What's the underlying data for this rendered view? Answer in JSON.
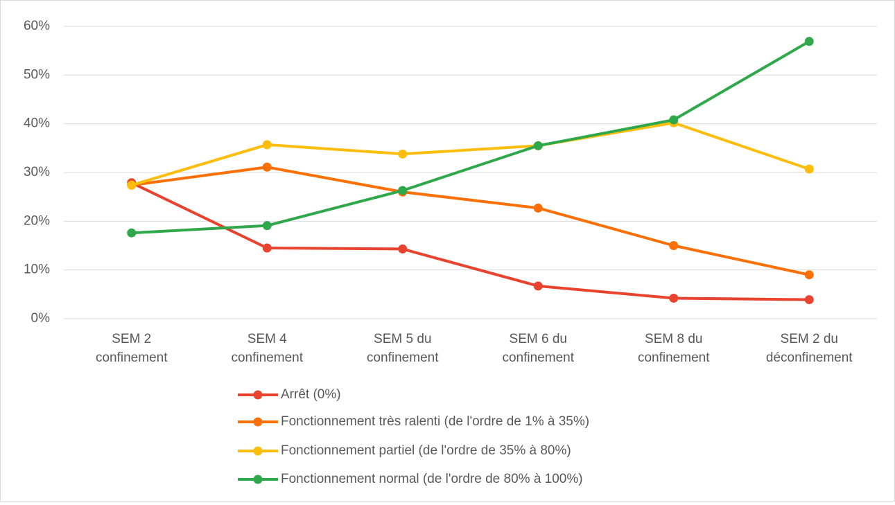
{
  "chart_data": {
    "type": "line",
    "categories": [
      "SEM 2\nconfinement",
      "SEM 4\nconfinement",
      "SEM 5 du\nconfinement",
      "SEM 6 du\nconfinement",
      "SEM 8 du\nconfinement",
      "SEM 2 du\ndéconfinement"
    ],
    "series": [
      {
        "name": "Arrêt (0%)",
        "color": "#e8432e",
        "values": [
          27.9,
          14.5,
          14.3,
          6.7,
          4.2,
          3.9
        ]
      },
      {
        "name": "Fonctionnement très ralenti (de l'ordre de 1% à 35%)",
        "color": "#fb7005",
        "values": [
          27.4,
          31.1,
          26.0,
          22.7,
          15.0,
          9.0
        ]
      },
      {
        "name": "Fonctionnement partiel (de l'ordre de 35% à 80%)",
        "color": "#fdbd0c",
        "values": [
          27.4,
          35.7,
          33.8,
          35.5,
          40.2,
          30.7
        ]
      },
      {
        "name": "Fonctionnement normal (de l'ordre de 80% à 100%)",
        "color": "#2ea84a",
        "values": [
          17.6,
          19.1,
          26.3,
          35.5,
          40.8,
          56.9
        ]
      }
    ],
    "ylim": [
      0,
      60
    ],
    "yticks": [
      {
        "value": 0,
        "label": "0%"
      },
      {
        "value": 10,
        "label": "10%"
      },
      {
        "value": 20,
        "label": "20%"
      },
      {
        "value": 30,
        "label": "30%"
      },
      {
        "value": 40,
        "label": "40%"
      },
      {
        "value": 50,
        "label": "50%"
      },
      {
        "value": 60,
        "label": "60%"
      }
    ],
    "grid": true,
    "legend": "bottom"
  }
}
